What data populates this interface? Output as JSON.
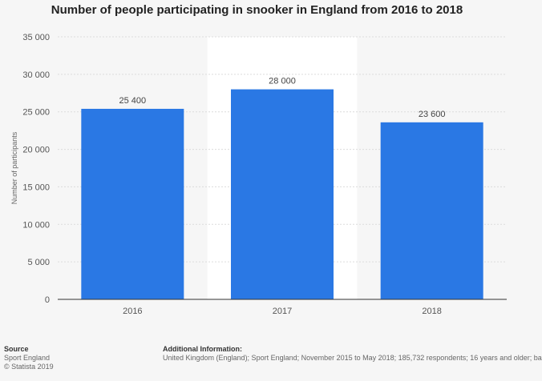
{
  "chart_data": {
    "type": "bar",
    "title": "Number of people participating in snooker in England from 2016 to 2018",
    "ylabel": "Number of participants",
    "xlabel": "",
    "categories": [
      "2016",
      "2017",
      "2018"
    ],
    "values": [
      25400,
      28000,
      23600
    ],
    "value_labels": [
      "25 400",
      "28 000",
      "23 600"
    ],
    "ylim": [
      0,
      35000
    ],
    "yticks": [
      0,
      5000,
      10000,
      15000,
      20000,
      25000,
      30000,
      35000
    ],
    "ytick_labels": [
      "0",
      "5 000",
      "10 000",
      "15 000",
      "20 000",
      "25 000",
      "30 000",
      "35 000"
    ],
    "highlighted_category": "2017",
    "grid": true,
    "colors": {
      "bar": "#2a78e4",
      "grid": "#dcdcdc",
      "highlight_band": "#ffffff"
    }
  },
  "footer": {
    "source_heading": "Source",
    "source_lines": [
      "Sport England",
      "© Statista 2019"
    ],
    "info_heading": "Additional Information:",
    "info_text": "United Kingdom (England); Sport England; November 2015 to May 2018; 185,732 respondents; 16 years and older; ba"
  }
}
